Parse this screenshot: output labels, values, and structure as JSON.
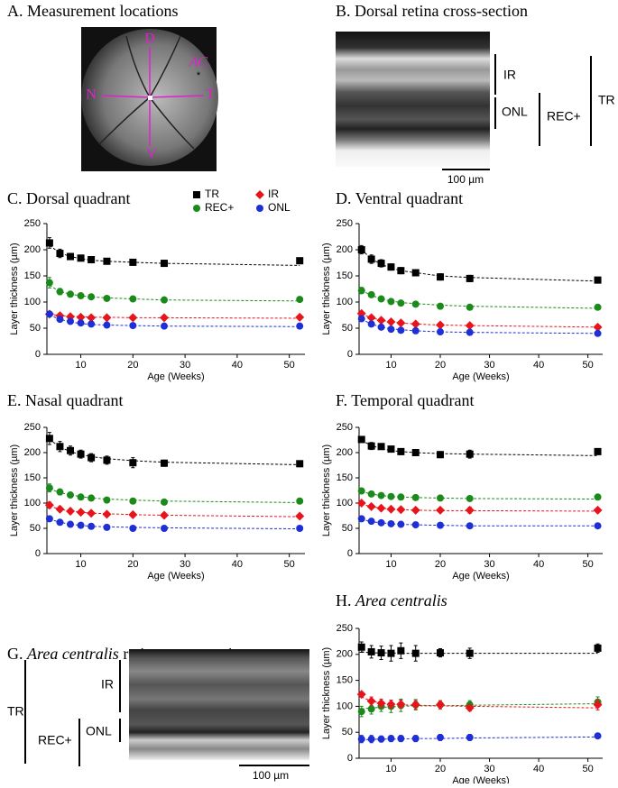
{
  "panels": {
    "a": {
      "title": "A. Measurement locations",
      "labels": {
        "d": "D",
        "ac": "AC",
        "n": "N",
        "t": "T",
        "v": "V"
      }
    },
    "b": {
      "title": "B. Dorsal retina cross-section",
      "labels": {
        "ir": "IR",
        "onl": "ONL",
        "rec": "REC+",
        "tr": "TR"
      },
      "scale": "100 µm"
    },
    "g": {
      "panel": "G.",
      "title_italic": "Area centralis",
      "title": "retina cross-section",
      "labels": {
        "tr": "TR",
        "ir": "IR",
        "rec": "REC+",
        "onl": "ONL"
      },
      "scale": "100 µm"
    }
  },
  "chart_data": [
    {
      "type": "scatter",
      "panel": "C.",
      "title": "Dorsal quadrant",
      "legend": true,
      "ylabel": "Layer thickness (µm)",
      "xlabel": "Age (Weeks)",
      "x": [
        4,
        6,
        8,
        10,
        12,
        15,
        20,
        26,
        52
      ],
      "xlim": [
        3.5,
        53
      ],
      "xticks": [
        10,
        20,
        30,
        40,
        50
      ],
      "ylim": [
        0,
        250
      ],
      "yticks": [
        0,
        50,
        100,
        150,
        200,
        250
      ],
      "series": [
        {
          "name": "TR",
          "color": "#000000",
          "marker": "square",
          "values": [
            213,
            193,
            187,
            184,
            181,
            178,
            176,
            174,
            179
          ],
          "errors": [
            10,
            8,
            6,
            5,
            5,
            5,
            4,
            6,
            5
          ],
          "fit": [
            208,
            194,
            187,
            183,
            180,
            178,
            176,
            174,
            170
          ]
        },
        {
          "name": "REC+",
          "color": "#1a8a1a",
          "marker": "circle",
          "values": [
            137,
            120,
            115,
            112,
            110,
            107,
            106,
            104,
            105
          ],
          "errors": [
            10,
            6,
            5,
            4,
            3,
            3,
            3,
            4,
            3
          ],
          "fit": [
            132,
            120,
            115,
            112,
            110,
            108,
            106,
            104,
            102
          ]
        },
        {
          "name": "IR",
          "color": "#e8141c",
          "marker": "diamond",
          "values": [
            77,
            74,
            72,
            71,
            70,
            70,
            70,
            70,
            71
          ],
          "errors": [
            3,
            3,
            2,
            2,
            2,
            2,
            2,
            2,
            2
          ],
          "fit": [
            77,
            74,
            73,
            72,
            71,
            71,
            70,
            70,
            69
          ]
        },
        {
          "name": "ONL",
          "color": "#1f2fd6",
          "marker": "circle",
          "values": [
            77,
            67,
            63,
            60,
            58,
            56,
            55,
            54,
            54
          ],
          "errors": [
            3,
            3,
            2,
            2,
            2,
            2,
            2,
            2,
            2
          ],
          "fit": [
            75,
            67,
            62,
            59,
            57,
            56,
            55,
            54,
            53
          ]
        }
      ]
    },
    {
      "type": "scatter",
      "panel": "D.",
      "title": "Ventral quadrant",
      "ylabel": "Layer thickness (µm)",
      "xlabel": "Age (Weeks)",
      "x": [
        4,
        6,
        8,
        10,
        12,
        15,
        20,
        26,
        52
      ],
      "xlim": [
        3.5,
        53
      ],
      "xticks": [
        10,
        20,
        30,
        40,
        50
      ],
      "ylim": [
        0,
        250
      ],
      "yticks": [
        0,
        50,
        100,
        150,
        200,
        250
      ],
      "series": [
        {
          "name": "TR",
          "color": "#000000",
          "marker": "square",
          "values": [
            200,
            182,
            174,
            167,
            160,
            156,
            148,
            145,
            142
          ],
          "errors": [
            8,
            8,
            7,
            6,
            6,
            5,
            6,
            6,
            4
          ],
          "fit": [
            200,
            183,
            172,
            165,
            160,
            156,
            150,
            147,
            140
          ]
        },
        {
          "name": "REC+",
          "color": "#1a8a1a",
          "marker": "circle",
          "values": [
            122,
            114,
            106,
            101,
            98,
            96,
            92,
            90,
            90
          ],
          "errors": [
            6,
            5,
            4,
            4,
            3,
            3,
            4,
            4,
            2
          ],
          "fit": [
            122,
            113,
            106,
            102,
            99,
            97,
            94,
            92,
            88
          ]
        },
        {
          "name": "IR",
          "color": "#e8141c",
          "marker": "diamond",
          "values": [
            78,
            70,
            65,
            62,
            60,
            58,
            56,
            55,
            52
          ],
          "errors": [
            3,
            3,
            2,
            2,
            2,
            2,
            2,
            2,
            2
          ],
          "fit": [
            77,
            70,
            65,
            62,
            60,
            58,
            56,
            55,
            52
          ]
        },
        {
          "name": "ONL",
          "color": "#1f2fd6",
          "marker": "circle",
          "values": [
            68,
            58,
            52,
            48,
            46,
            45,
            43,
            42,
            40
          ],
          "errors": [
            3,
            3,
            2,
            2,
            2,
            2,
            2,
            2,
            2
          ],
          "fit": [
            67,
            58,
            52,
            49,
            47,
            45,
            43,
            42,
            40
          ]
        }
      ]
    },
    {
      "type": "scatter",
      "panel": "E.",
      "title": "Nasal quadrant",
      "ylabel": "Layer thickness (µm)",
      "xlabel": "Age (Weeks)",
      "x": [
        4,
        6,
        8,
        10,
        12,
        15,
        20,
        26,
        52
      ],
      "xlim": [
        3.5,
        53
      ],
      "xticks": [
        10,
        20,
        30,
        40,
        50
      ],
      "ylim": [
        0,
        250
      ],
      "yticks": [
        0,
        50,
        100,
        150,
        200,
        250
      ],
      "series": [
        {
          "name": "TR",
          "color": "#000000",
          "marker": "square",
          "values": [
            228,
            212,
            204,
            197,
            190,
            185,
            180,
            179,
            178
          ],
          "errors": [
            12,
            10,
            9,
            8,
            8,
            8,
            10,
            6,
            6
          ],
          "fit": [
            226,
            211,
            202,
            196,
            192,
            188,
            184,
            181,
            176
          ]
        },
        {
          "name": "REC+",
          "color": "#1a8a1a",
          "marker": "circle",
          "values": [
            130,
            122,
            116,
            112,
            110,
            106,
            104,
            102,
            104
          ],
          "errors": [
            8,
            6,
            5,
            4,
            4,
            4,
            5,
            3,
            3
          ],
          "fit": [
            128,
            121,
            116,
            113,
            110,
            108,
            106,
            104,
            101
          ]
        },
        {
          "name": "IR",
          "color": "#e8141c",
          "marker": "diamond",
          "values": [
            96,
            88,
            84,
            82,
            80,
            78,
            77,
            76,
            74
          ],
          "errors": [
            6,
            5,
            5,
            4,
            4,
            4,
            4,
            3,
            3
          ],
          "fit": [
            94,
            88,
            84,
            82,
            80,
            79,
            77,
            76,
            73
          ]
        },
        {
          "name": "ONL",
          "color": "#1f2fd6",
          "marker": "circle",
          "values": [
            69,
            62,
            58,
            56,
            54,
            52,
            50,
            50,
            50
          ],
          "errors": [
            4,
            3,
            3,
            3,
            2,
            2,
            2,
            2,
            2
          ],
          "fit": [
            68,
            62,
            58,
            56,
            54,
            53,
            52,
            51,
            49
          ]
        }
      ]
    },
    {
      "type": "scatter",
      "panel": "F.",
      "title": "Temporal quadrant",
      "ylabel": "Layer thickness (µm)",
      "xlabel": "Age (Weeks)",
      "x": [
        4,
        6,
        8,
        10,
        12,
        15,
        20,
        26,
        52
      ],
      "xlim": [
        3.5,
        53
      ],
      "xticks": [
        10,
        20,
        30,
        40,
        50
      ],
      "ylim": [
        0,
        250
      ],
      "yticks": [
        0,
        50,
        100,
        150,
        200,
        250
      ],
      "series": [
        {
          "name": "TR",
          "color": "#000000",
          "marker": "square",
          "values": [
            226,
            213,
            212,
            207,
            202,
            200,
            196,
            197,
            202
          ],
          "errors": [
            5,
            7,
            5,
            5,
            6,
            6,
            6,
            8,
            3
          ],
          "fit": [
            224,
            214,
            208,
            204,
            202,
            200,
            198,
            197,
            194
          ]
        },
        {
          "name": "REC+",
          "color": "#1a8a1a",
          "marker": "circle",
          "values": [
            124,
            118,
            115,
            113,
            112,
            111,
            110,
            109,
            112
          ],
          "errors": [
            5,
            4,
            4,
            3,
            3,
            3,
            4,
            4,
            3
          ],
          "fit": [
            123,
            118,
            115,
            113,
            112,
            111,
            110,
            109,
            108
          ]
        },
        {
          "name": "IR",
          "color": "#e8141c",
          "marker": "diamond",
          "values": [
            100,
            93,
            90,
            88,
            87,
            86,
            86,
            86,
            86
          ],
          "errors": [
            3,
            3,
            3,
            3,
            3,
            3,
            4,
            6,
            3
          ],
          "fit": [
            98,
            93,
            90,
            88,
            87,
            86,
            85,
            85,
            84
          ]
        },
        {
          "name": "ONL",
          "color": "#1f2fd6",
          "marker": "circle",
          "values": [
            69,
            64,
            61,
            59,
            58,
            57,
            56,
            55,
            55
          ],
          "errors": [
            3,
            3,
            2,
            2,
            2,
            2,
            2,
            2,
            2
          ],
          "fit": [
            68,
            63,
            61,
            59,
            58,
            57,
            56,
            55,
            55
          ]
        }
      ]
    },
    {
      "type": "scatter",
      "panel": "H.",
      "title_italic": "Area centralis",
      "ylabel": "Layer thickness (µm)",
      "xlabel": "Age (Weeks)",
      "x": [
        4,
        6,
        8,
        10,
        12,
        15,
        20,
        26,
        52
      ],
      "xlim": [
        3.5,
        53
      ],
      "xticks": [
        10,
        20,
        30,
        40,
        50
      ],
      "ylim": [
        0,
        250
      ],
      "yticks": [
        0,
        50,
        100,
        150,
        200,
        250
      ],
      "series": [
        {
          "name": "TR",
          "color": "#000000",
          "marker": "square",
          "values": [
            214,
            205,
            203,
            202,
            207,
            202,
            203,
            202,
            212
          ],
          "errors": [
            10,
            12,
            13,
            15,
            15,
            15,
            8,
            10,
            8
          ],
          "fit": [
            205,
            203,
            203,
            203,
            202,
            202,
            202,
            202,
            202
          ]
        },
        {
          "name": "REC+",
          "color": "#1a8a1a",
          "marker": "circle",
          "values": [
            90,
            95,
            100,
            100,
            102,
            103,
            103,
            103,
            108
          ],
          "errors": [
            10,
            10,
            10,
            12,
            12,
            10,
            8,
            8,
            10
          ],
          "fit": [
            95,
            97,
            98,
            99,
            100,
            101,
            101,
            102,
            105
          ]
        },
        {
          "name": "IR",
          "color": "#e8141c",
          "marker": "diamond",
          "values": [
            123,
            110,
            106,
            104,
            104,
            103,
            103,
            97,
            103
          ],
          "errors": [
            5,
            8,
            8,
            8,
            8,
            8,
            8,
            6,
            10
          ],
          "fit": [
            118,
            110,
            106,
            104,
            103,
            102,
            101,
            100,
            97
          ]
        },
        {
          "name": "ONL",
          "color": "#1f2fd6",
          "marker": "circle",
          "values": [
            37,
            37,
            37,
            38,
            38,
            38,
            40,
            40,
            43
          ],
          "errors": [
            7,
            7,
            6,
            6,
            6,
            6,
            6,
            6,
            4
          ],
          "fit": [
            36,
            36,
            37,
            37,
            37,
            38,
            38,
            39,
            41
          ]
        }
      ]
    }
  ]
}
